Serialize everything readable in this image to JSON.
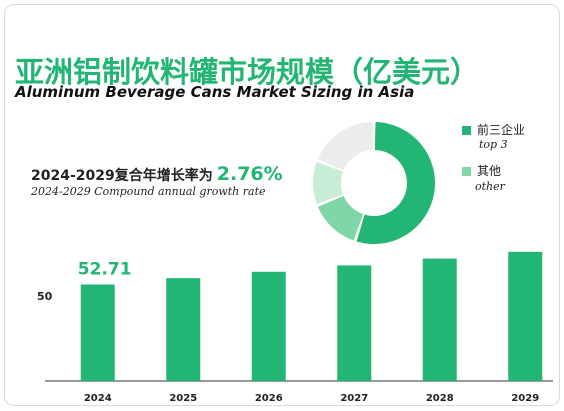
{
  "title_cn": "亚洲铝制饮料罐市场规模（亿美元）",
  "title_en": "Aluminum Beverage Cans Market Sizing in Asia",
  "cagr": {
    "label_cn": "2024-2029复合年增长率为",
    "value": "2.76%",
    "label_en": "2024-2029 Compound annual growth rate"
  },
  "legend": [
    {
      "label": "前三企业",
      "sub": "top 3",
      "color": "#22b573"
    },
    {
      "label": "其他",
      "sub": "other",
      "color": "#7fd6a6"
    }
  ],
  "colors": {
    "accent": "#22b573",
    "light": "#7fd6a6",
    "lighter": "#c8ecd6",
    "lightest": "#ececec"
  },
  "chart_data": [
    {
      "type": "bar",
      "categories": [
        "2024",
        "2025",
        "2026",
        "2027",
        "2028",
        "2029"
      ],
      "values": [
        52.71,
        54.2,
        55.7,
        57.2,
        58.8,
        60.4
      ],
      "data_labels": [
        "52.71",
        "",
        "",
        "",
        "",
        ""
      ],
      "y_tick_labels": [
        "50"
      ],
      "y_tick_values": [
        50
      ],
      "ylim": [
        30,
        62
      ],
      "grid": false
    },
    {
      "type": "pie",
      "style": "donut",
      "labels": [
        "前三企业",
        "其他",
        "其他",
        "其他"
      ],
      "values": [
        55,
        14,
        12,
        19
      ]
    }
  ]
}
